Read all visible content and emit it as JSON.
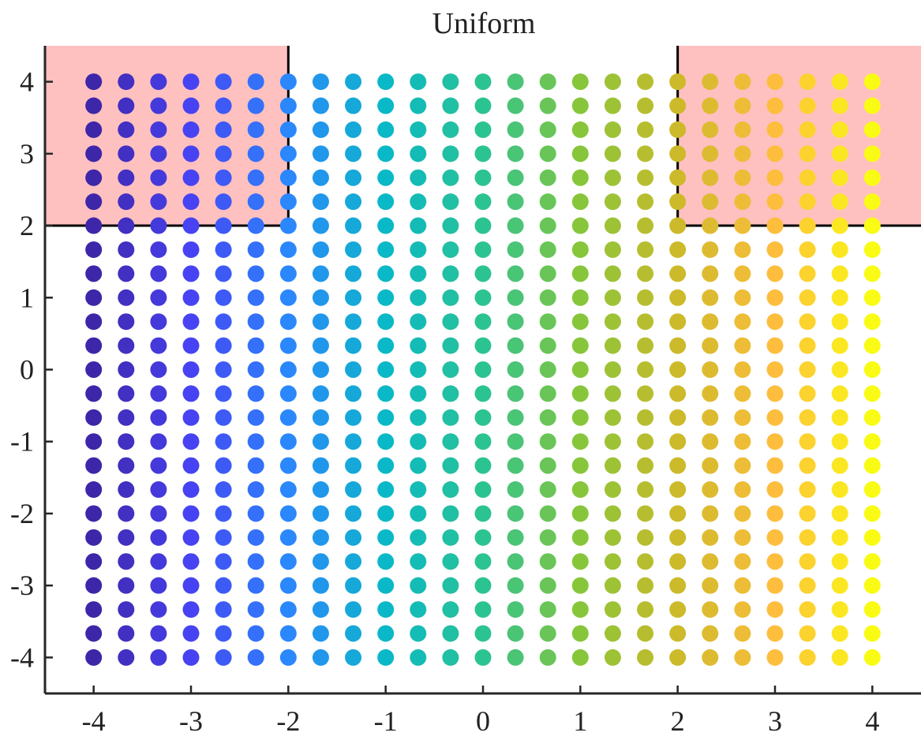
{
  "chart_data": {
    "type": "scatter",
    "title": "Uniform",
    "xlabel": "",
    "ylabel": "",
    "xlim": [
      -4.5,
      4.5
    ],
    "ylim": [
      -4.5,
      4.5
    ],
    "x_ticks": [
      -4,
      -3,
      -2,
      -1,
      0,
      1,
      2,
      3,
      4
    ],
    "y_ticks": [
      -4,
      -3,
      -2,
      -1,
      0,
      1,
      2,
      3,
      4
    ],
    "x_tick_labels": [
      "-4",
      "-3",
      "-2",
      "-1",
      "0",
      "1",
      "2",
      "3",
      "4"
    ],
    "y_tick_labels": [
      "-4",
      "-3",
      "-2",
      "-1",
      "0",
      "1",
      "2",
      "3",
      "4"
    ],
    "grid": false,
    "points": {
      "description": "uniform grid",
      "x_start": -4,
      "x_stop": 4,
      "x_count": 25,
      "y_start": -4,
      "y_stop": 4,
      "y_count": 25,
      "color_by": "x",
      "colormap": [
        "#3e26a8",
        "#4743f3",
        "#2b87fc",
        "#0ab8c8",
        "#2cc392",
        "#87c63b",
        "#cdba2b",
        "#fdbe3d",
        "#f9fb14"
      ]
    },
    "shaded_regions": [
      {
        "x": [
          -4.5,
          -2
        ],
        "y": [
          2,
          4.5
        ],
        "color": "#ffc0c0"
      },
      {
        "x": [
          2,
          4.5
        ],
        "y": [
          2,
          4.5
        ],
        "color": "#ffc0c0"
      }
    ],
    "boundary_color": "#000000",
    "axis_color": "#262626"
  }
}
